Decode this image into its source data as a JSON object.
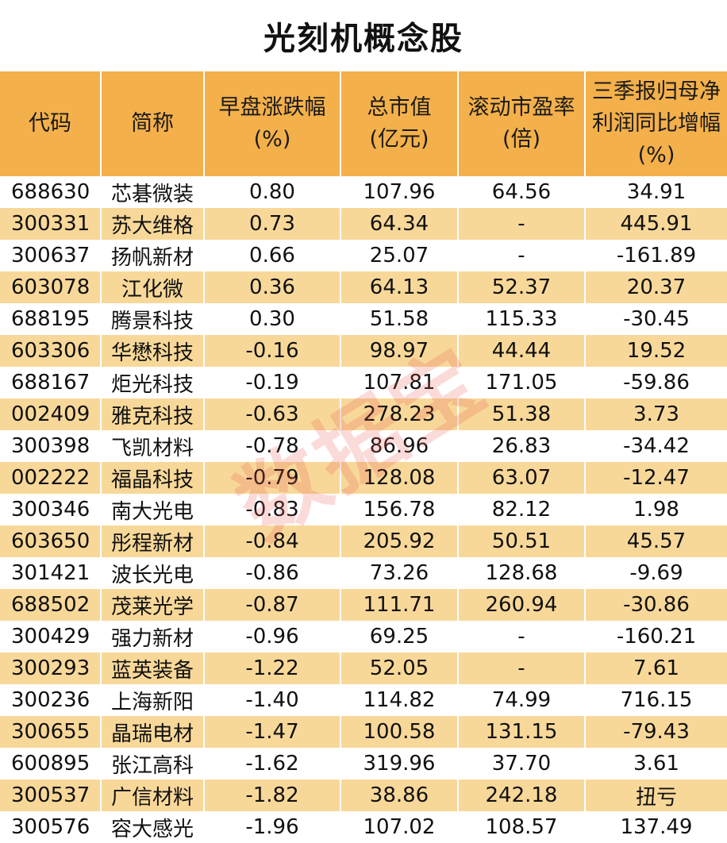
{
  "title": "光刻机概念股",
  "watermark": "数据宝",
  "columns": [
    {
      "line1": "代码",
      "line2": "",
      "line3": ""
    },
    {
      "line1": "简称",
      "line2": "",
      "line3": ""
    },
    {
      "line1": "早盘涨跌幅",
      "line2": "(%)",
      "line3": ""
    },
    {
      "line1": "总市值",
      "line2": "(亿元)",
      "line3": ""
    },
    {
      "line1": "滚动市盈率",
      "line2": "(倍)",
      "line3": ""
    },
    {
      "line1": "三季报归母净",
      "line2": "利润同比增幅",
      "line3": "(%)"
    }
  ],
  "rows": [
    [
      "688630",
      "芯碁微装",
      "0.80",
      "107.96",
      "64.56",
      "34.91"
    ],
    [
      "300331",
      "苏大维格",
      "0.73",
      "64.34",
      "-",
      "445.91"
    ],
    [
      "300637",
      "扬帆新材",
      "0.66",
      "25.07",
      "-",
      "-161.89"
    ],
    [
      "603078",
      "江化微",
      "0.36",
      "64.13",
      "52.37",
      "20.37"
    ],
    [
      "688195",
      "腾景科技",
      "0.30",
      "51.58",
      "115.33",
      "-30.45"
    ],
    [
      "603306",
      "华懋科技",
      "-0.16",
      "98.97",
      "44.44",
      "19.52"
    ],
    [
      "688167",
      "炬光科技",
      "-0.19",
      "107.81",
      "171.05",
      "-59.86"
    ],
    [
      "002409",
      "雅克科技",
      "-0.63",
      "278.23",
      "51.38",
      "3.73"
    ],
    [
      "300398",
      "飞凯材料",
      "-0.78",
      "86.96",
      "26.83",
      "-34.42"
    ],
    [
      "002222",
      "福晶科技",
      "-0.79",
      "128.08",
      "63.07",
      "-12.47"
    ],
    [
      "300346",
      "南大光电",
      "-0.83",
      "156.78",
      "82.12",
      "1.98"
    ],
    [
      "603650",
      "彤程新材",
      "-0.84",
      "205.92",
      "50.51",
      "45.57"
    ],
    [
      "301421",
      "波长光电",
      "-0.86",
      "73.26",
      "128.68",
      "-9.69"
    ],
    [
      "688502",
      "茂莱光学",
      "-0.87",
      "111.71",
      "260.94",
      "-30.86"
    ],
    [
      "300429",
      "强力新材",
      "-0.96",
      "69.25",
      "-",
      "-160.21"
    ],
    [
      "300293",
      "蓝英装备",
      "-1.22",
      "52.05",
      "-",
      "7.61"
    ],
    [
      "300236",
      "上海新阳",
      "-1.40",
      "114.82",
      "74.99",
      "716.15"
    ],
    [
      "300655",
      "晶瑞电材",
      "-1.47",
      "100.58",
      "131.15",
      "-79.43"
    ],
    [
      "600895",
      "张江高科",
      "-1.62",
      "319.96",
      "37.70",
      "3.61"
    ],
    [
      "300537",
      "广信材料",
      "-1.82",
      "38.86",
      "242.18",
      "扭亏"
    ],
    [
      "300576",
      "容大感光",
      "-1.96",
      "107.02",
      "108.57",
      "137.49"
    ]
  ],
  "colors": {
    "header": "#f4b04b",
    "stripe": "#f8d899",
    "watermark": "#e85a50"
  }
}
